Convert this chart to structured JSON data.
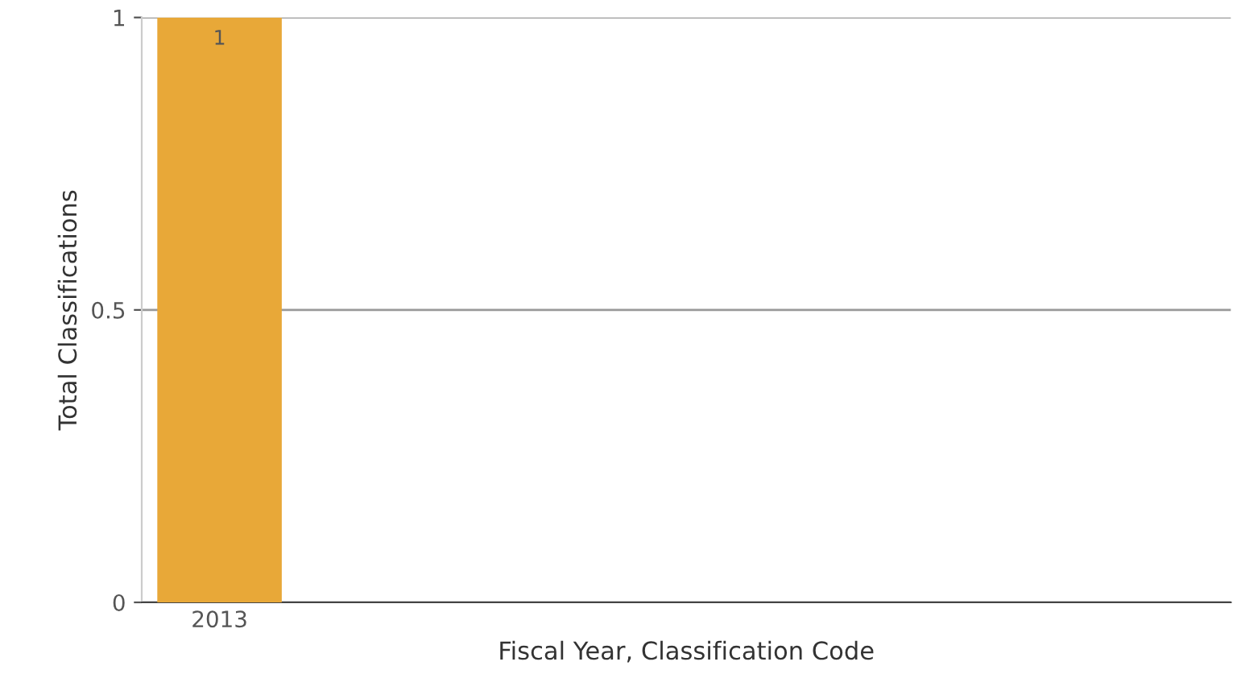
{
  "chart_data": {
    "type": "bar",
    "xlabel": "Fiscal Year, Classification Code",
    "ylabel": "Total Classifications",
    "categories": [
      "2013",
      null,
      null,
      null,
      null,
      null,
      null
    ],
    "values": [
      1,
      null,
      null,
      null,
      null,
      null,
      null
    ],
    "color": "#e8a838",
    "ylim": [
      0,
      1
    ],
    "yticks": [
      0,
      0.5,
      1
    ],
    "grid": "y",
    "data_labels": true
  }
}
